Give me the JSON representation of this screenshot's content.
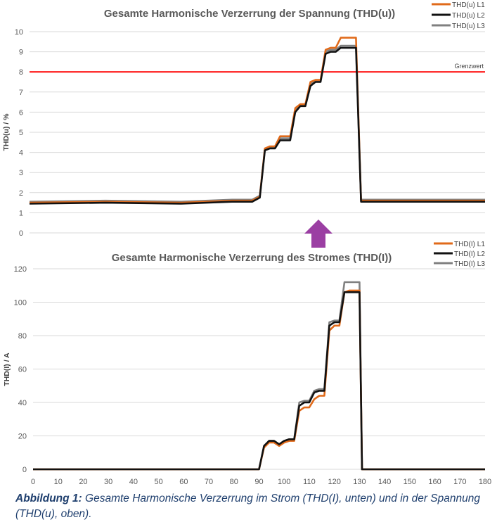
{
  "arrow_color": "#9b3fa3",
  "caption": {
    "label": "Abbildung 1:",
    "text": "Gesamte Harmonische Verzerrung im Strom (THD(I), unten) und in der Spannung (THD(u), oben)."
  },
  "chart_data": [
    {
      "type": "line",
      "title": "Gesamte Harmonische Verzerrung der Spannung (THD(u))",
      "ylabel": "THD(u) / %",
      "xlabel": "",
      "ylim": [
        0,
        10
      ],
      "yticks": [
        0,
        1,
        2,
        3,
        4,
        5,
        6,
        7,
        8,
        9,
        10
      ],
      "xlim": [
        0,
        180
      ],
      "grid": true,
      "legend": "top-right",
      "reference_line": {
        "label": "Grenzwert",
        "value": 8,
        "color": "#ff1a1a"
      },
      "series": [
        {
          "name": "THD(u) L1",
          "color": "#e06a1a",
          "x": [
            0,
            30,
            60,
            80,
            88,
            91,
            93,
            95,
            97,
            99,
            101,
            103,
            105,
            107,
            109,
            111,
            113,
            115,
            117,
            119,
            121,
            123,
            125,
            127,
            129,
            131,
            140,
            180
          ],
          "y": [
            1.5,
            1.55,
            1.5,
            1.6,
            1.6,
            1.8,
            4.2,
            4.3,
            4.3,
            4.8,
            4.8,
            4.8,
            6.2,
            6.4,
            6.4,
            7.5,
            7.6,
            7.6,
            9.1,
            9.2,
            9.2,
            9.7,
            9.7,
            9.7,
            9.7,
            1.6,
            1.6,
            1.6
          ]
        },
        {
          "name": "THD(u) L2",
          "color": "#111111",
          "x": [
            0,
            30,
            60,
            80,
            88,
            91,
            93,
            95,
            97,
            99,
            101,
            103,
            105,
            107,
            109,
            111,
            113,
            115,
            117,
            119,
            121,
            123,
            125,
            127,
            129,
            131,
            140,
            180
          ],
          "y": [
            1.45,
            1.5,
            1.45,
            1.55,
            1.55,
            1.75,
            4.1,
            4.2,
            4.2,
            4.6,
            4.6,
            4.6,
            6.0,
            6.3,
            6.3,
            7.3,
            7.5,
            7.5,
            8.9,
            9.0,
            9.0,
            9.2,
            9.2,
            9.2,
            9.2,
            1.55,
            1.55,
            1.55
          ]
        },
        {
          "name": "THD(u) L3",
          "color": "#808080",
          "x": [
            0,
            30,
            60,
            80,
            88,
            91,
            93,
            95,
            97,
            99,
            101,
            103,
            105,
            107,
            109,
            111,
            113,
            115,
            117,
            119,
            121,
            123,
            125,
            127,
            129,
            131,
            140,
            180
          ],
          "y": [
            1.55,
            1.6,
            1.55,
            1.65,
            1.65,
            1.85,
            4.15,
            4.25,
            4.25,
            4.7,
            4.7,
            4.7,
            6.1,
            6.35,
            6.35,
            7.4,
            7.55,
            7.55,
            9.0,
            9.1,
            9.1,
            9.3,
            9.3,
            9.3,
            9.3,
            1.65,
            1.65,
            1.65
          ]
        }
      ]
    },
    {
      "type": "line",
      "title": "Gesamte Harmonische Verzerrung des Stromes (THD(I))",
      "ylabel": "THD(I) / A",
      "xlabel": "",
      "ylim": [
        0,
        120
      ],
      "yticks": [
        0,
        20,
        40,
        60,
        80,
        100,
        120
      ],
      "xlim": [
        0,
        180
      ],
      "xticks": [
        0,
        10,
        20,
        30,
        40,
        50,
        60,
        70,
        80,
        90,
        100,
        110,
        120,
        130,
        140,
        150,
        160,
        170,
        180
      ],
      "grid": true,
      "legend": "top-right",
      "series": [
        {
          "name": "THD(I) L1",
          "color": "#e06a1a",
          "x": [
            0,
            90,
            92,
            94,
            96,
            98,
            100,
            102,
            104,
            106,
            108,
            110,
            112,
            114,
            116,
            118,
            120,
            122,
            124,
            126,
            128,
            130,
            131,
            180
          ],
          "y": [
            0,
            0,
            13,
            16,
            16,
            14,
            16,
            17,
            17,
            35,
            37,
            37,
            42,
            44,
            44,
            83,
            86,
            86,
            106,
            107,
            107,
            107,
            0,
            0
          ]
        },
        {
          "name": "THD(I) L2",
          "color": "#111111",
          "x": [
            0,
            90,
            92,
            94,
            96,
            98,
            100,
            102,
            104,
            106,
            108,
            110,
            112,
            114,
            116,
            118,
            120,
            122,
            124,
            126,
            128,
            130,
            131,
            180
          ],
          "y": [
            0,
            0,
            14,
            17,
            17,
            15,
            17,
            18,
            18,
            38,
            40,
            40,
            46,
            47,
            47,
            86,
            88,
            88,
            106,
            106,
            106,
            106,
            0,
            0
          ]
        },
        {
          "name": "THD(I) L3",
          "color": "#808080",
          "x": [
            0,
            90,
            92,
            94,
            96,
            98,
            100,
            102,
            104,
            106,
            108,
            110,
            112,
            114,
            116,
            118,
            120,
            122,
            124,
            126,
            128,
            130,
            131,
            180
          ],
          "y": [
            0,
            0,
            14,
            17,
            17,
            15,
            17,
            18,
            18,
            40,
            41,
            41,
            47,
            48,
            48,
            88,
            89,
            89,
            112,
            112,
            112,
            112,
            0,
            0
          ]
        }
      ]
    }
  ]
}
